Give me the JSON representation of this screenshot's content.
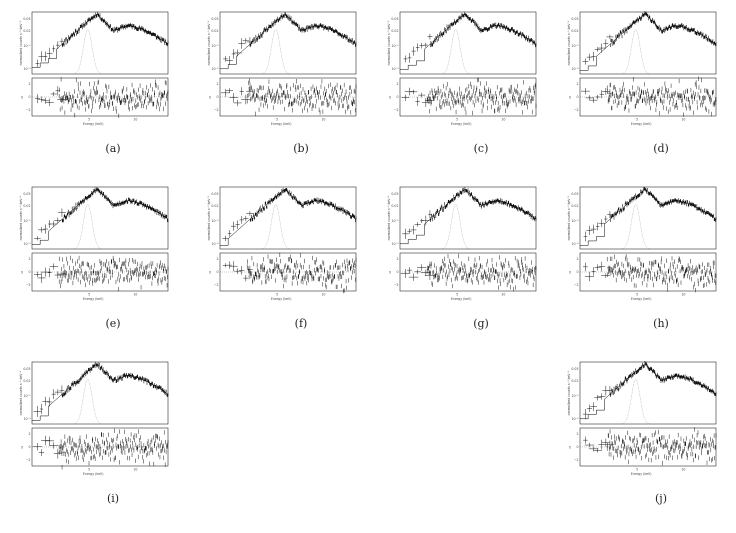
{
  "figure": {
    "panels": [
      {
        "caption": "(a)",
        "seed": 11,
        "low_steps": 3,
        "step_level": 0.18
      },
      {
        "caption": "(b)",
        "seed": 23,
        "low_steps": 2,
        "step_level": 0.14
      },
      {
        "caption": "(c)",
        "seed": 37,
        "low_steps": 3,
        "step_level": 0.12
      },
      {
        "caption": "(d)",
        "seed": 41,
        "low_steps": 2,
        "step_level": 0.1
      },
      {
        "caption": "(e)",
        "seed": 53,
        "low_steps": 2,
        "step_level": 0.12
      },
      {
        "caption": "(f)",
        "seed": 67,
        "low_steps": 1,
        "step_level": 0.1
      },
      {
        "caption": "(g)",
        "seed": 79,
        "low_steps": 3,
        "step_level": 0.14
      },
      {
        "caption": "(h)",
        "seed": 83,
        "low_steps": 3,
        "step_level": 0.1
      },
      {
        "caption": "(i)",
        "seed": 97,
        "low_steps": 2,
        "step_level": 0.1
      },
      {
        "caption": "(j)",
        "seed": 101,
        "low_steps": 3,
        "step_level": 0.14
      }
    ]
  },
  "chart_data": [
    {
      "type": "line",
      "panel": "(a)",
      "xlabel": "Energy (keV)",
      "ylabel_top": "normalized counts s⁻¹ keV⁻¹",
      "ylabel_bottom": "χ",
      "yticks_top": [
        "0.05",
        "0.02",
        "10⁻²",
        "10⁻³"
      ],
      "yticks_bottom": [
        "2",
        "0",
        "−2"
      ],
      "xticks": [
        "5",
        "10"
      ]
    },
    {
      "type": "line",
      "panel": "(b)",
      "xlabel": "Energy (keV)",
      "ylabel_top": "normalized counts s⁻¹ keV⁻¹",
      "ylabel_bottom": "χ",
      "yticks_top": [
        "0.05",
        "0.02",
        "10⁻²",
        "10⁻³"
      ],
      "yticks_bottom": [
        "2",
        "0",
        "−2"
      ],
      "xticks": [
        "5",
        "10"
      ]
    },
    {
      "type": "line",
      "panel": "(c)",
      "xlabel": "Energy (keV)",
      "ylabel_top": "normalized counts s⁻¹ keV⁻¹",
      "ylabel_bottom": "χ",
      "yticks_top": [
        "0.05",
        "0.02",
        "10⁻²",
        "10⁻³"
      ],
      "yticks_bottom": [
        "2",
        "0",
        "−2"
      ],
      "xticks": [
        "5",
        "10"
      ]
    },
    {
      "type": "line",
      "panel": "(d)",
      "xlabel": "Energy (keV)",
      "ylabel_top": "normalized counts s⁻¹ keV⁻¹",
      "ylabel_bottom": "χ",
      "yticks_top": [
        "0.05",
        "0.02",
        "10⁻²",
        "10⁻³"
      ],
      "yticks_bottom": [
        "2",
        "0",
        "−2"
      ],
      "xticks": [
        "5",
        "10"
      ]
    },
    {
      "type": "line",
      "panel": "(e)",
      "xlabel": "Energy (keV)",
      "ylabel_top": "normalized counts s⁻¹ keV⁻¹",
      "ylabel_bottom": "χ",
      "yticks_top": [
        "0.05",
        "0.02",
        "10⁻²",
        "10⁻³"
      ],
      "yticks_bottom": [
        "2",
        "0",
        "−2"
      ],
      "xticks": [
        "5",
        "10"
      ]
    },
    {
      "type": "line",
      "panel": "(f)",
      "xlabel": "Energy (keV)",
      "ylabel_top": "normalized counts s⁻¹ keV⁻¹",
      "ylabel_bottom": "χ",
      "yticks_top": [
        "0.05",
        "0.02",
        "10⁻²",
        "10⁻³"
      ],
      "yticks_bottom": [
        "2",
        "0",
        "−2"
      ],
      "xticks": [
        "5",
        "10"
      ]
    },
    {
      "type": "line",
      "panel": "(g)",
      "xlabel": "Energy (keV)",
      "ylabel_top": "normalized counts s⁻¹ keV⁻¹",
      "ylabel_bottom": "χ",
      "yticks_top": [
        "0.05",
        "0.02",
        "10⁻²",
        "10⁻³"
      ],
      "yticks_bottom": [
        "2",
        "0",
        "−2"
      ],
      "xticks": [
        "5",
        "10"
      ]
    },
    {
      "type": "line",
      "panel": "(h)",
      "xlabel": "Energy (keV)",
      "ylabel_top": "normalized counts s⁻¹ keV⁻¹",
      "ylabel_bottom": "χ",
      "yticks_top": [
        "0.05",
        "0.02",
        "10⁻²",
        "10⁻³"
      ],
      "yticks_bottom": [
        "2",
        "0",
        "−2"
      ],
      "xticks": [
        "5",
        "10"
      ]
    },
    {
      "type": "line",
      "panel": "(i)",
      "xlabel": "Energy (keV)",
      "ylabel_top": "normalized counts s⁻¹ keV⁻¹",
      "ylabel_bottom": "χ",
      "yticks_top": [
        "0.05",
        "0.02",
        "10⁻²",
        "10⁻³"
      ],
      "yticks_bottom": [
        "2",
        "0",
        "−2"
      ],
      "xticks": [
        "5",
        "10"
      ]
    },
    {
      "type": "line",
      "panel": "(j)",
      "xlabel": "Energy (keV)",
      "ylabel_top": "normalized counts s⁻¹ keV⁻¹",
      "ylabel_bottom": "χ",
      "yticks_top": [
        "0.05",
        "0.02",
        "10⁻²",
        "10⁻³"
      ],
      "yticks_bottom": [
        "2",
        "0",
        "−2"
      ],
      "xticks": [
        "5",
        "10"
      ]
    }
  ]
}
